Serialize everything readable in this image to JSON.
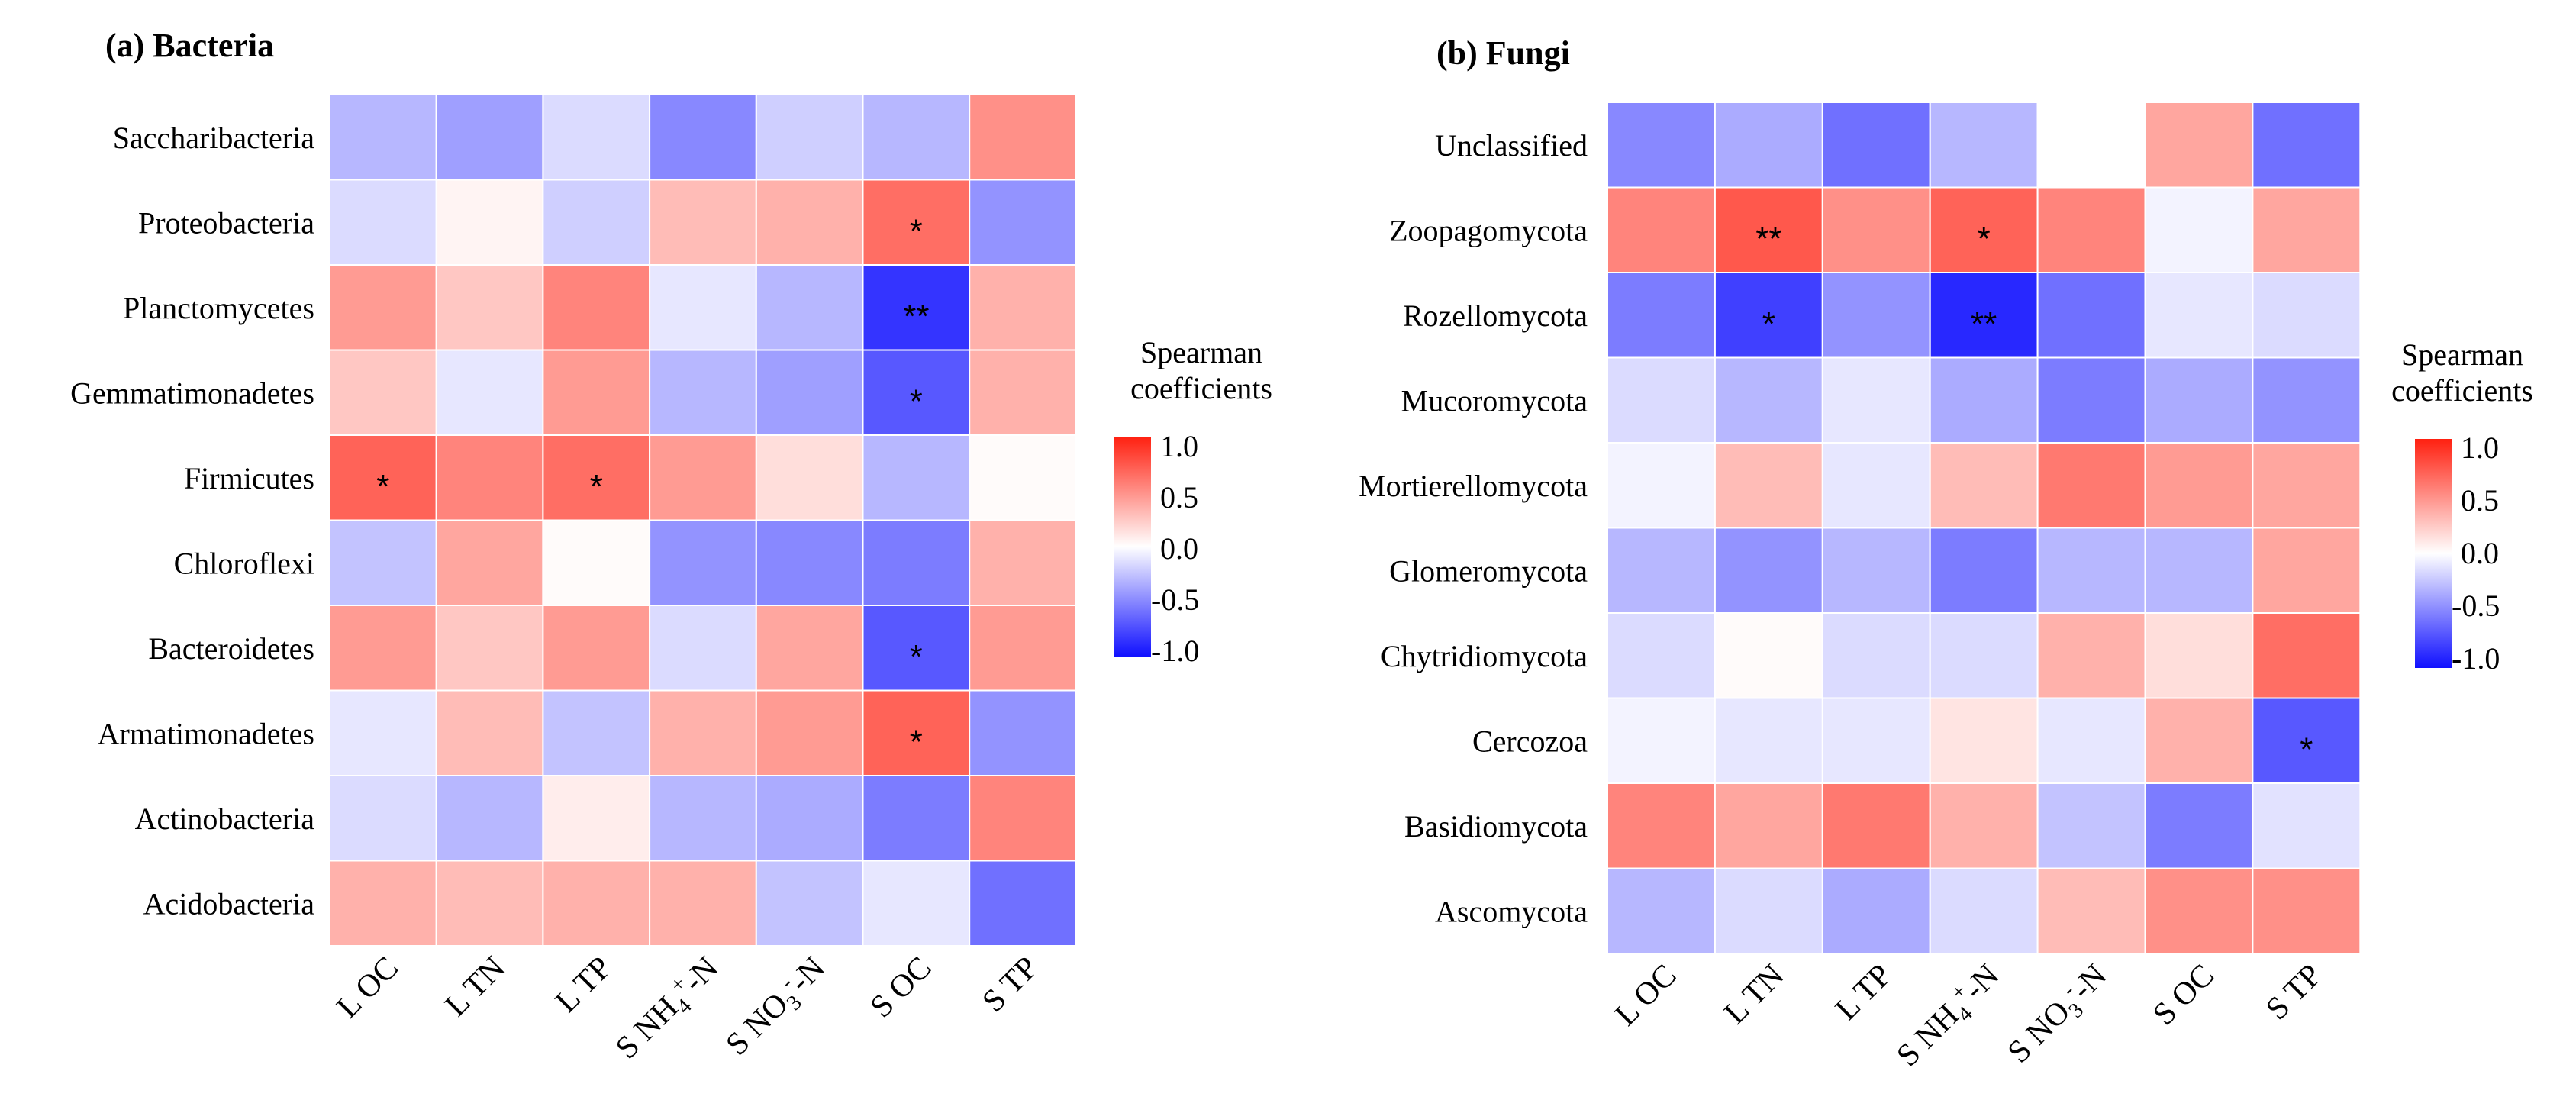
{
  "chart_data": [
    {
      "type": "heatmap",
      "title": "(a) Bacteria",
      "rows": [
        "Saccharibacteria",
        "Proteobacteria",
        "Planctomycetes",
        "Gemmatimonadetes",
        "Firmicutes",
        "Chloroflexi",
        "Bacteroidetes",
        "Armatimonadetes",
        "Actinobacteria",
        "Acidobacteria"
      ],
      "columns": [
        {
          "prefix": "L OC"
        },
        {
          "prefix": "L TN"
        },
        {
          "prefix": "L TP"
        },
        {
          "prefix": "S NH",
          "sub": "4",
          "sup": "+",
          "suffix": "-N"
        },
        {
          "prefix": "S NO",
          "sub": "3",
          "sup": "-",
          "suffix": "-N"
        },
        {
          "prefix": "S OC"
        },
        {
          "prefix": "S TP"
        }
      ],
      "values": [
        [
          -0.3,
          -0.4,
          -0.15,
          -0.5,
          -0.2,
          -0.3,
          0.5
        ],
        [
          -0.15,
          0.05,
          -0.2,
          0.3,
          0.35,
          0.65,
          -0.45
        ],
        [
          0.45,
          0.25,
          0.55,
          -0.1,
          -0.3,
          -0.85,
          0.35
        ],
        [
          0.25,
          -0.1,
          0.45,
          -0.3,
          -0.4,
          -0.7,
          0.35
        ],
        [
          0.7,
          0.55,
          0.65,
          0.45,
          0.15,
          -0.3,
          0.02
        ],
        [
          -0.25,
          0.4,
          0.02,
          -0.45,
          -0.5,
          -0.55,
          0.35
        ],
        [
          0.45,
          0.25,
          0.45,
          -0.15,
          0.4,
          -0.7,
          0.45
        ],
        [
          -0.1,
          0.3,
          -0.25,
          0.35,
          0.45,
          0.7,
          -0.45
        ],
        [
          -0.15,
          -0.3,
          0.08,
          -0.3,
          -0.35,
          -0.55,
          0.55
        ],
        [
          0.35,
          0.3,
          0.35,
          0.35,
          -0.25,
          -0.1,
          -0.6
        ]
      ],
      "annotations": [
        [
          "",
          "",
          "",
          "",
          "",
          "",
          ""
        ],
        [
          "",
          "",
          "",
          "",
          "",
          "*",
          ""
        ],
        [
          "",
          "",
          "",
          "",
          "",
          "**",
          ""
        ],
        [
          "",
          "",
          "",
          "",
          "",
          "*",
          ""
        ],
        [
          "*",
          "",
          "*",
          "",
          "",
          "",
          ""
        ],
        [
          "",
          "",
          "",
          "",
          "",
          "",
          ""
        ],
        [
          "",
          "",
          "",
          "",
          "",
          "*",
          ""
        ],
        [
          "",
          "",
          "",
          "",
          "",
          "*",
          ""
        ],
        [
          "",
          "",
          "",
          "",
          "",
          "",
          ""
        ],
        [
          "",
          "",
          "",
          "",
          "",
          "",
          ""
        ]
      ],
      "legend": {
        "title_line1": "Spearman",
        "title_line2": "coefficients",
        "ticks": [
          "1.0",
          "0.5",
          "0.0",
          "-0.5",
          "-1.0"
        ],
        "range": [
          -1,
          1
        ]
      }
    },
    {
      "type": "heatmap",
      "title": "(b) Fungi",
      "rows": [
        "Unclassified",
        "Zoopagomycota",
        "Rozellomycota",
        "Mucoromycota",
        "Mortierellomycota",
        "Glomeromycota",
        "Chytridiomycota",
        "Cercozoa",
        "Basidiomycota",
        "Ascomycota"
      ],
      "columns": [
        {
          "prefix": "L OC"
        },
        {
          "prefix": "L TN"
        },
        {
          "prefix": "L TP"
        },
        {
          "prefix": "S NH",
          "sub": "4",
          "sup": "+",
          "suffix": "-N"
        },
        {
          "prefix": "S NO",
          "sub": "3",
          "sup": "-",
          "suffix": "-N"
        },
        {
          "prefix": "S OC"
        },
        {
          "prefix": "S TP"
        }
      ],
      "values": [
        [
          -0.5,
          -0.35,
          -0.6,
          -0.3,
          0.0,
          0.4,
          -0.6
        ],
        [
          0.55,
          0.75,
          0.5,
          0.7,
          0.55,
          -0.05,
          0.4
        ],
        [
          -0.55,
          -0.8,
          -0.45,
          -0.9,
          -0.6,
          -0.1,
          -0.15
        ],
        [
          -0.15,
          -0.3,
          -0.1,
          -0.35,
          -0.55,
          -0.35,
          -0.45
        ],
        [
          -0.05,
          0.3,
          -0.1,
          0.3,
          0.6,
          0.45,
          0.4
        ],
        [
          -0.3,
          -0.45,
          -0.3,
          -0.55,
          -0.3,
          -0.3,
          0.4
        ],
        [
          -0.15,
          0.02,
          -0.15,
          -0.15,
          0.35,
          0.15,
          0.65
        ],
        [
          -0.05,
          -0.1,
          -0.1,
          0.12,
          -0.1,
          0.35,
          -0.7
        ],
        [
          0.55,
          0.4,
          0.6,
          0.35,
          -0.25,
          -0.55,
          -0.12
        ],
        [
          -0.3,
          -0.15,
          -0.35,
          -0.15,
          0.3,
          0.5,
          0.5
        ]
      ],
      "annotations": [
        [
          "",
          "",
          "",
          "",
          "",
          "",
          ""
        ],
        [
          "",
          "**",
          "",
          "*",
          "",
          "",
          ""
        ],
        [
          "",
          "*",
          "",
          "**",
          "",
          "",
          ""
        ],
        [
          "",
          "",
          "",
          "",
          "",
          "",
          ""
        ],
        [
          "",
          "",
          "",
          "",
          "",
          "",
          ""
        ],
        [
          "",
          "",
          "",
          "",
          "",
          "",
          ""
        ],
        [
          "",
          "",
          "",
          "",
          "",
          "",
          ""
        ],
        [
          "",
          "",
          "",
          "",
          "",
          "",
          "*"
        ],
        [
          "",
          "",
          "",
          "",
          "",
          "",
          ""
        ],
        [
          "",
          "",
          "",
          "",
          "",
          "",
          ""
        ]
      ],
      "legend": {
        "title_line1": "Spearman",
        "title_line2": "coefficients",
        "ticks": [
          "1.0",
          "0.5",
          "0.0",
          "-0.5",
          "-1.0"
        ],
        "range": [
          -1,
          1
        ]
      }
    }
  ],
  "colors": {
    "low": "#1010ff",
    "mid": "#ffffff",
    "high": "#ff2010",
    "gridline": "#ffffff",
    "text": "#000000"
  }
}
